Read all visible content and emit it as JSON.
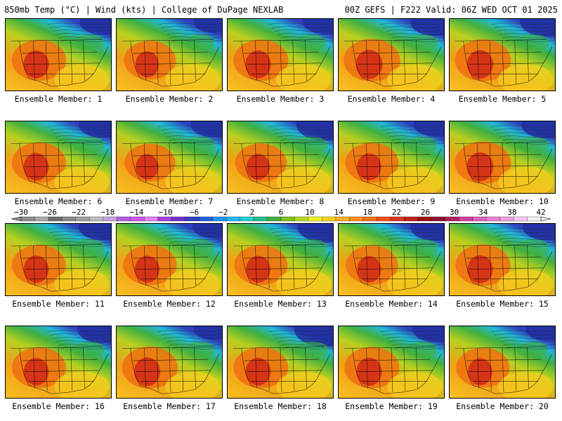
{
  "header": {
    "left_text": "850mb Temp (°C) | Wind (kts) | College of DuPage NEXLAB",
    "right_text": "00Z GEFS | F222 Valid: 06Z WED OCT 01 2025"
  },
  "panel_label_prefix": "Ensemble Member: ",
  "members": [
    {
      "id": 1,
      "label": "Ensemble Member: 1",
      "warm": 0.78,
      "cold": 0.45
    },
    {
      "id": 2,
      "label": "Ensemble Member: 2",
      "warm": 0.62,
      "cold": 0.3
    },
    {
      "id": 3,
      "label": "Ensemble Member: 3",
      "warm": 0.8,
      "cold": 0.4
    },
    {
      "id": 4,
      "label": "Ensemble Member: 4",
      "warm": 0.9,
      "cold": 0.55
    },
    {
      "id": 5,
      "label": "Ensemble Member: 5",
      "warm": 0.85,
      "cold": 0.6
    },
    {
      "id": 6,
      "label": "Ensemble Member: 6",
      "warm": 0.75,
      "cold": 0.5
    },
    {
      "id": 7,
      "label": "Ensemble Member: 7",
      "warm": 0.55,
      "cold": 0.45
    },
    {
      "id": 8,
      "label": "Ensemble Member: 8",
      "warm": 0.6,
      "cold": 0.7
    },
    {
      "id": 9,
      "label": "Ensemble Member: 9",
      "warm": 0.7,
      "cold": 0.4
    },
    {
      "id": 10,
      "label": "Ensemble Member: 10",
      "warm": 0.88,
      "cold": 0.55
    },
    {
      "id": 11,
      "label": "Ensemble Member: 11",
      "warm": 0.75,
      "cold": 0.5
    },
    {
      "id": 12,
      "label": "Ensemble Member: 12",
      "warm": 0.72,
      "cold": 0.35
    },
    {
      "id": 13,
      "label": "Ensemble Member: 13",
      "warm": 0.7,
      "cold": 0.65
    },
    {
      "id": 14,
      "label": "Ensemble Member: 14",
      "warm": 0.65,
      "cold": 0.55
    },
    {
      "id": 15,
      "label": "Ensemble Member: 15",
      "warm": 0.8,
      "cold": 0.5
    },
    {
      "id": 16,
      "label": "Ensemble Member: 16",
      "warm": 0.75,
      "cold": 0.55
    },
    {
      "id": 17,
      "label": "Ensemble Member: 17",
      "warm": 0.85,
      "cold": 0.3
    },
    {
      "id": 18,
      "label": "Ensemble Member: 18",
      "warm": 0.78,
      "cold": 0.8
    },
    {
      "id": 19,
      "label": "Ensemble Member: 19",
      "warm": 0.8,
      "cold": 0.45
    },
    {
      "id": 20,
      "label": "Ensemble Member: 20",
      "warm": 0.7,
      "cold": 0.35
    }
  ],
  "colorbar": {
    "label_values": [
      "-30",
      "-26",
      "-22",
      "-18",
      "-14",
      "-10",
      "-6",
      "-2",
      "2",
      "6",
      "10",
      "14",
      "18",
      "22",
      "26",
      "30",
      "34",
      "38",
      "42"
    ],
    "colors": [
      "#8c8c8c",
      "#a8a8a8",
      "#6e6e6e",
      "#8a8a8a",
      "#a0a0a0",
      "#bcbcbc",
      "#c9a0dc",
      "#b060e0",
      "#d050e8",
      "#e080f0",
      "#a040e0",
      "#7030d0",
      "#3040c0",
      "#2060e0",
      "#2090f0",
      "#20b8f0",
      "#20d0d0",
      "#20c090",
      "#40b040",
      "#80c020",
      "#b8d820",
      "#f0f020",
      "#f8d020",
      "#f8b020",
      "#f89010",
      "#f07010",
      "#f05010",
      "#e03020",
      "#c02020",
      "#a01010",
      "#901030",
      "#b02060",
      "#d040a0",
      "#e060c0",
      "#f080d0",
      "#f0a0e0",
      "#f8c8f0",
      "#f0f0f0"
    ]
  }
}
